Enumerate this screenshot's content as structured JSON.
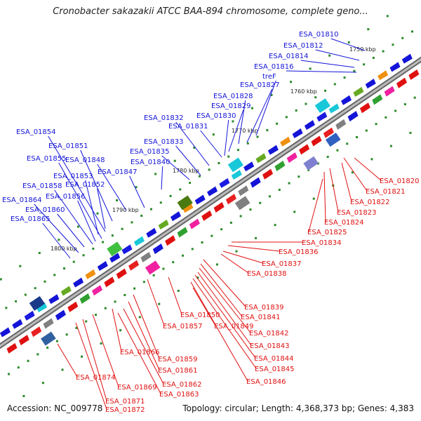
{
  "title": "Cronobacter sakazakii ATCC BAA-894 chromosome, complete geno...",
  "accession": "Accession: NC_009778",
  "summary": "Topology: circular; Length: 4,368,373 bp; Genes: 4,383",
  "kbp_marks": [
    "1750 kbp",
    "1760 kbp",
    "1770 kbp",
    "1780 kbp",
    "1790 kbp",
    "1800 kbp"
  ],
  "forward_labels": [
    "ESA_01810",
    "ESA_01812",
    "ESA_01814",
    "ESA_01816",
    "treF",
    "ESA_01827",
    "ESA_01828",
    "ESA_01829",
    "ESA_01830",
    "ESA_01831",
    "ESA_01832",
    "ESA_01833",
    "ESA_01835",
    "ESA_01840",
    "ESA_01847",
    "ESA_01848",
    "ESA_01851",
    "ESA_01852",
    "ESA_01853",
    "ESA_01854",
    "ESA_01855",
    "ESA_01856",
    "ESA_01858",
    "ESA_01860",
    "ESA_01864",
    "ESA_01865"
  ],
  "reverse_labels": [
    "ESA_01820",
    "ESA_01821",
    "ESA_01822",
    "ESA_01823",
    "ESA_01824",
    "ESA_01825",
    "ESA_01834",
    "ESA_01836",
    "ESA_01837",
    "ESA_01838",
    "ESA_01839",
    "ESA_01841",
    "ESA_01842",
    "ESA_01843",
    "ESA_01844",
    "ESA_01845",
    "ESA_01846",
    "ESA_01849",
    "ESA_01850",
    "ESA_01857",
    "ESA_01859",
    "ESA_01861",
    "ESA_01862",
    "ESA_01863",
    "ESA_01866",
    "ESA_01869",
    "ESA_01871",
    "ESA_01872",
    "ESA_01874"
  ],
  "colors": {
    "forward": "#1414d8",
    "reverse": "#e01010",
    "backbone": "#888888",
    "tick": "#2a8a2a"
  }
}
